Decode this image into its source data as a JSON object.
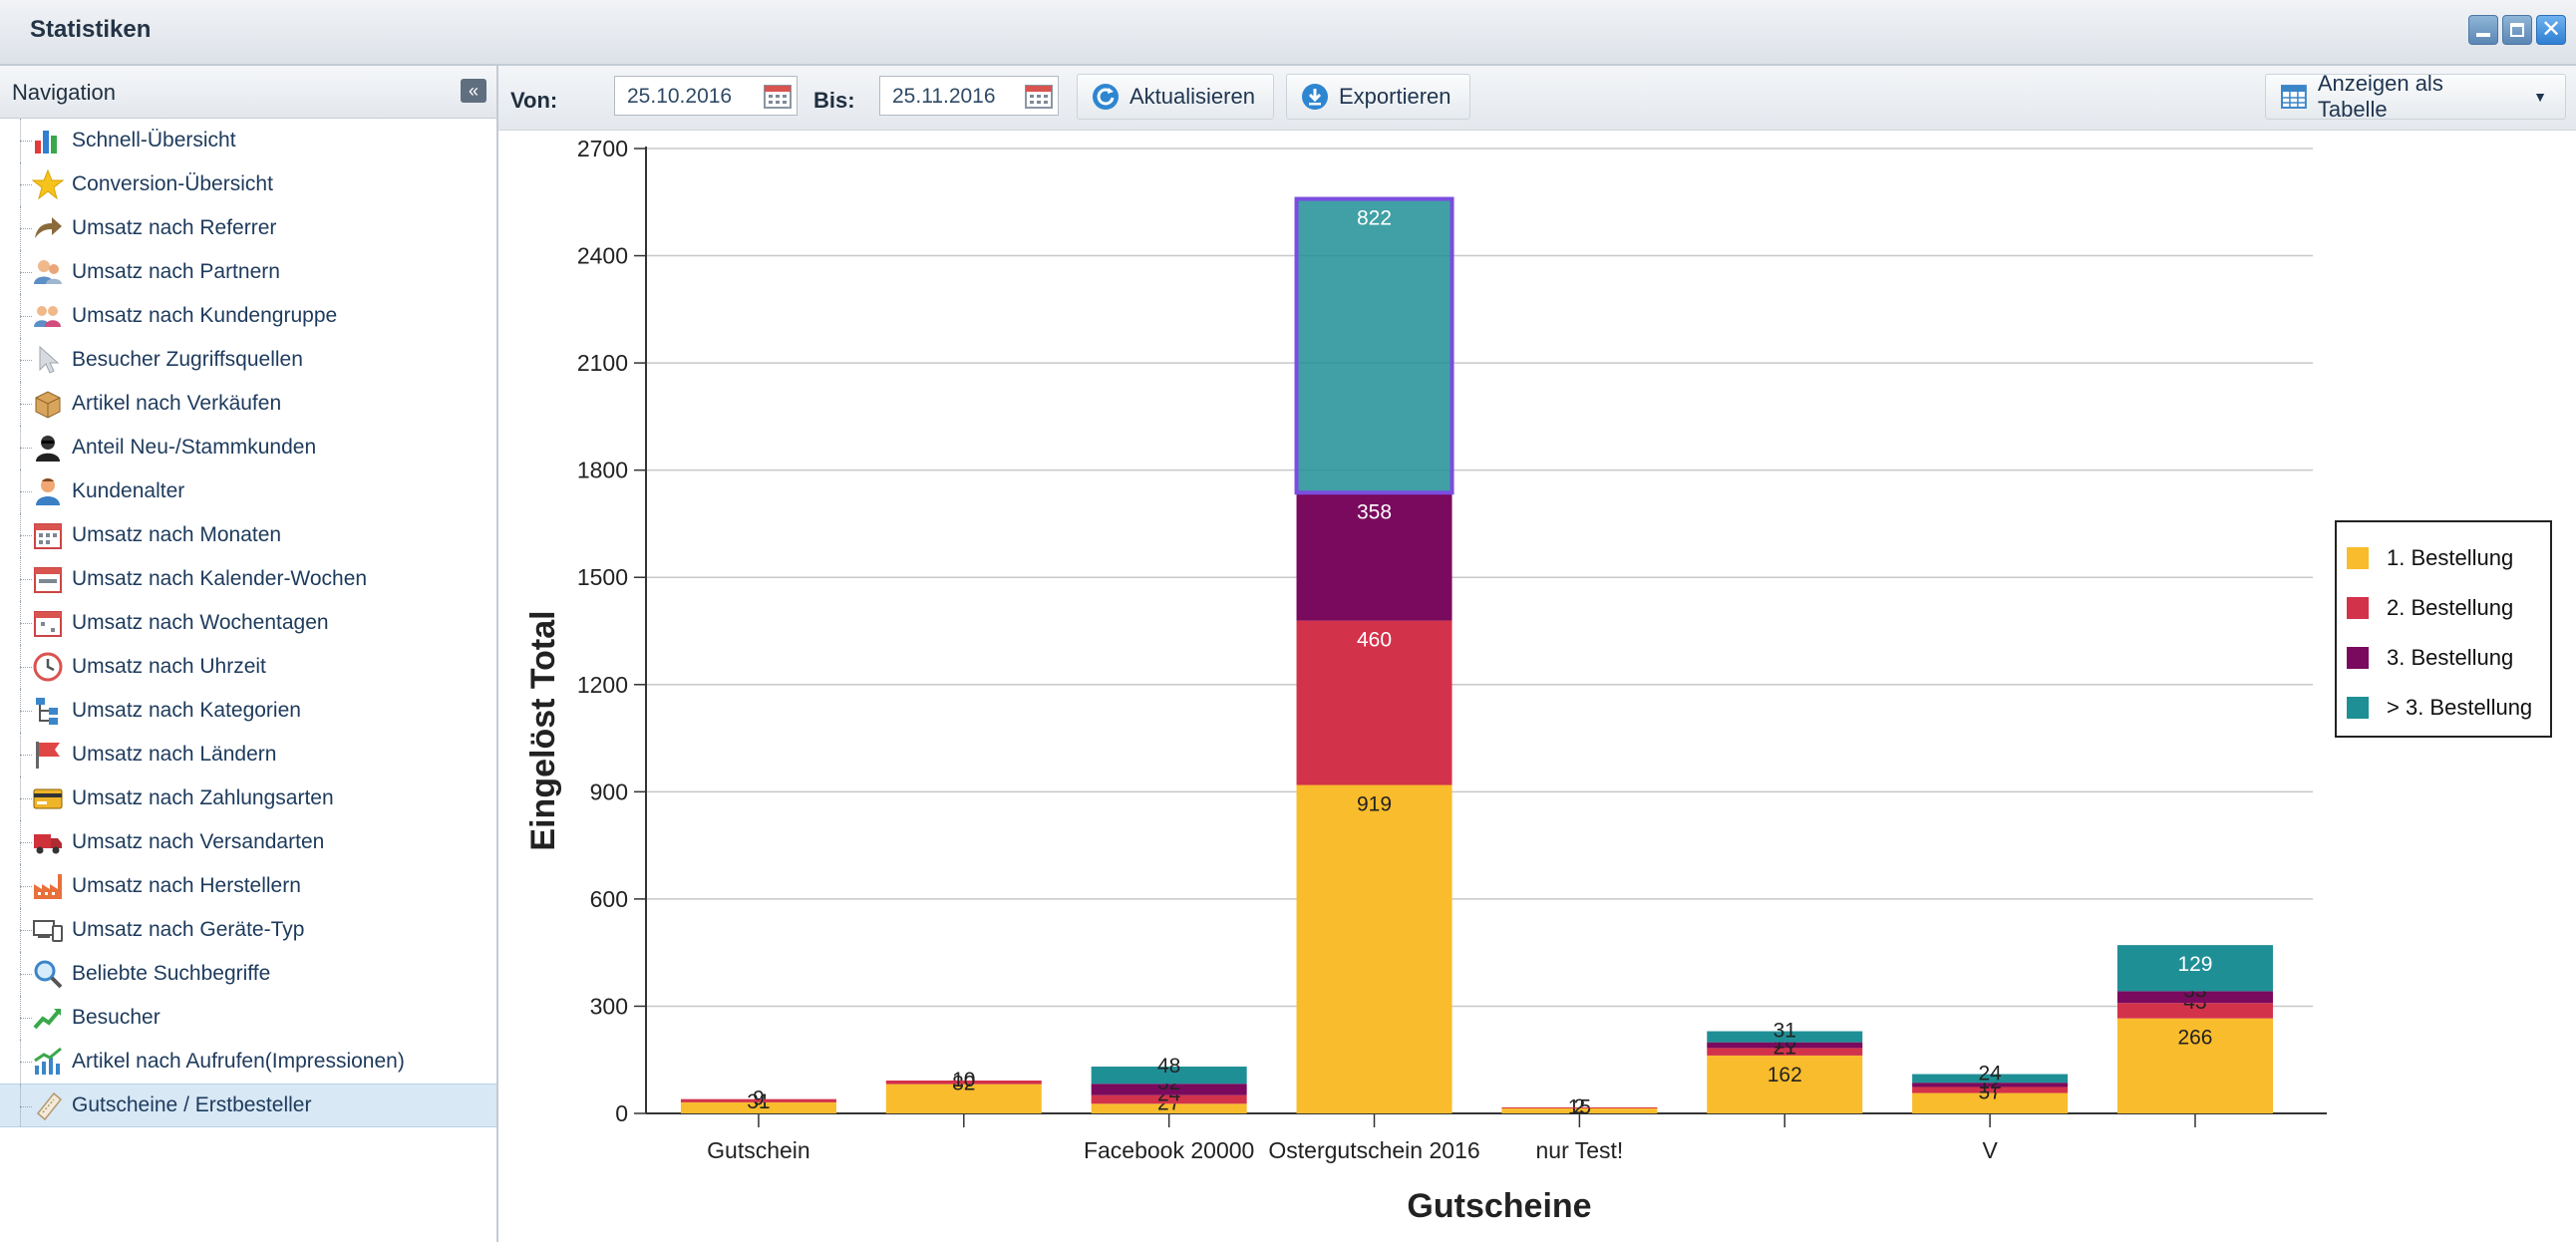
{
  "window": {
    "title": "Statistiken"
  },
  "sidebar": {
    "title": "Navigation",
    "items": [
      {
        "label": "Schnell-Übersicht",
        "icon": "bar-chart-icon"
      },
      {
        "label": "Conversion-Übersicht",
        "icon": "star-icon"
      },
      {
        "label": "Umsatz nach Referrer",
        "icon": "arrow-forward-icon"
      },
      {
        "label": "Umsatz nach Partnern",
        "icon": "partner-icon"
      },
      {
        "label": "Umsatz nach Kundengruppe",
        "icon": "customer-group-icon"
      },
      {
        "label": "Besucher Zugriffsquellen",
        "icon": "cursor-icon"
      },
      {
        "label": "Artikel nach Verkäufen",
        "icon": "box-icon"
      },
      {
        "label": "Anteil Neu-/Stammkunden",
        "icon": "agent-icon"
      },
      {
        "label": "Kundenalter",
        "icon": "user-icon"
      },
      {
        "label": "Umsatz nach Monaten",
        "icon": "calendar-month-icon"
      },
      {
        "label": "Umsatz nach Kalender-Wochen",
        "icon": "calendar-week-icon"
      },
      {
        "label": "Umsatz nach Wochentagen",
        "icon": "calendar-day-icon"
      },
      {
        "label": "Umsatz nach Uhrzeit",
        "icon": "clock-icon"
      },
      {
        "label": "Umsatz nach Kategorien",
        "icon": "category-tree-icon"
      },
      {
        "label": "Umsatz nach Ländern",
        "icon": "flag-icon"
      },
      {
        "label": "Umsatz nach Zahlungsarten",
        "icon": "credit-card-icon"
      },
      {
        "label": "Umsatz nach Versandarten",
        "icon": "truck-icon"
      },
      {
        "label": "Umsatz nach Herstellern",
        "icon": "factory-icon"
      },
      {
        "label": "Umsatz nach Geräte-Typ",
        "icon": "devices-icon"
      },
      {
        "label": "Beliebte Suchbegriffe",
        "icon": "magnifier-icon"
      },
      {
        "label": "Besucher",
        "icon": "trend-up-icon"
      },
      {
        "label": "Artikel nach Aufrufen(Impressionen)",
        "icon": "trend-chart-icon"
      },
      {
        "label": "Gutscheine / Erstbesteller",
        "icon": "voucher-icon",
        "active": true
      }
    ]
  },
  "toolbar": {
    "from_label": "Von:",
    "from_value": "25.10.2016",
    "to_label": "Bis:",
    "to_value": "25.11.2016",
    "refresh_label": "Aktualisieren",
    "export_label": "Exportieren",
    "view_label": "Anzeigen als Tabelle"
  },
  "chart_data": {
    "type": "bar",
    "stacked": true,
    "title": "",
    "xlabel": "Gutscheine",
    "ylabel": "Eingelöst Total",
    "ylim": [
      0,
      2700
    ],
    "yticks": [
      0,
      300,
      600,
      900,
      1200,
      1500,
      1800,
      2100,
      2400,
      2700
    ],
    "grid": true,
    "legend_position": "right",
    "categories": [
      "Gutschein",
      "",
      "Facebook 20000",
      "Ostergutschein 2016",
      "nur Test!",
      "",
      "V",
      ""
    ],
    "series": [
      {
        "name": "1. Bestellung",
        "color": "#f9bc2c",
        "values": [
          31,
          82,
          27,
          919,
          15,
          162,
          57,
          266
        ]
      },
      {
        "name": "2. Bestellung",
        "color": "#d3324b",
        "values": [
          9,
          10,
          24,
          460,
          2,
          21,
          17,
          43
        ]
      },
      {
        "name": "3. Bestellung",
        "color": "#7a0a5e",
        "values": [
          0,
          0,
          32,
          358,
          0,
          16,
          12,
          33
        ]
      },
      {
        "name": "> 3. Bestellung",
        "color": "#1f8f96",
        "values": [
          0,
          0,
          48,
          822,
          0,
          31,
          24,
          129
        ]
      }
    ],
    "highlight": {
      "category": 3,
      "series": 3
    }
  }
}
